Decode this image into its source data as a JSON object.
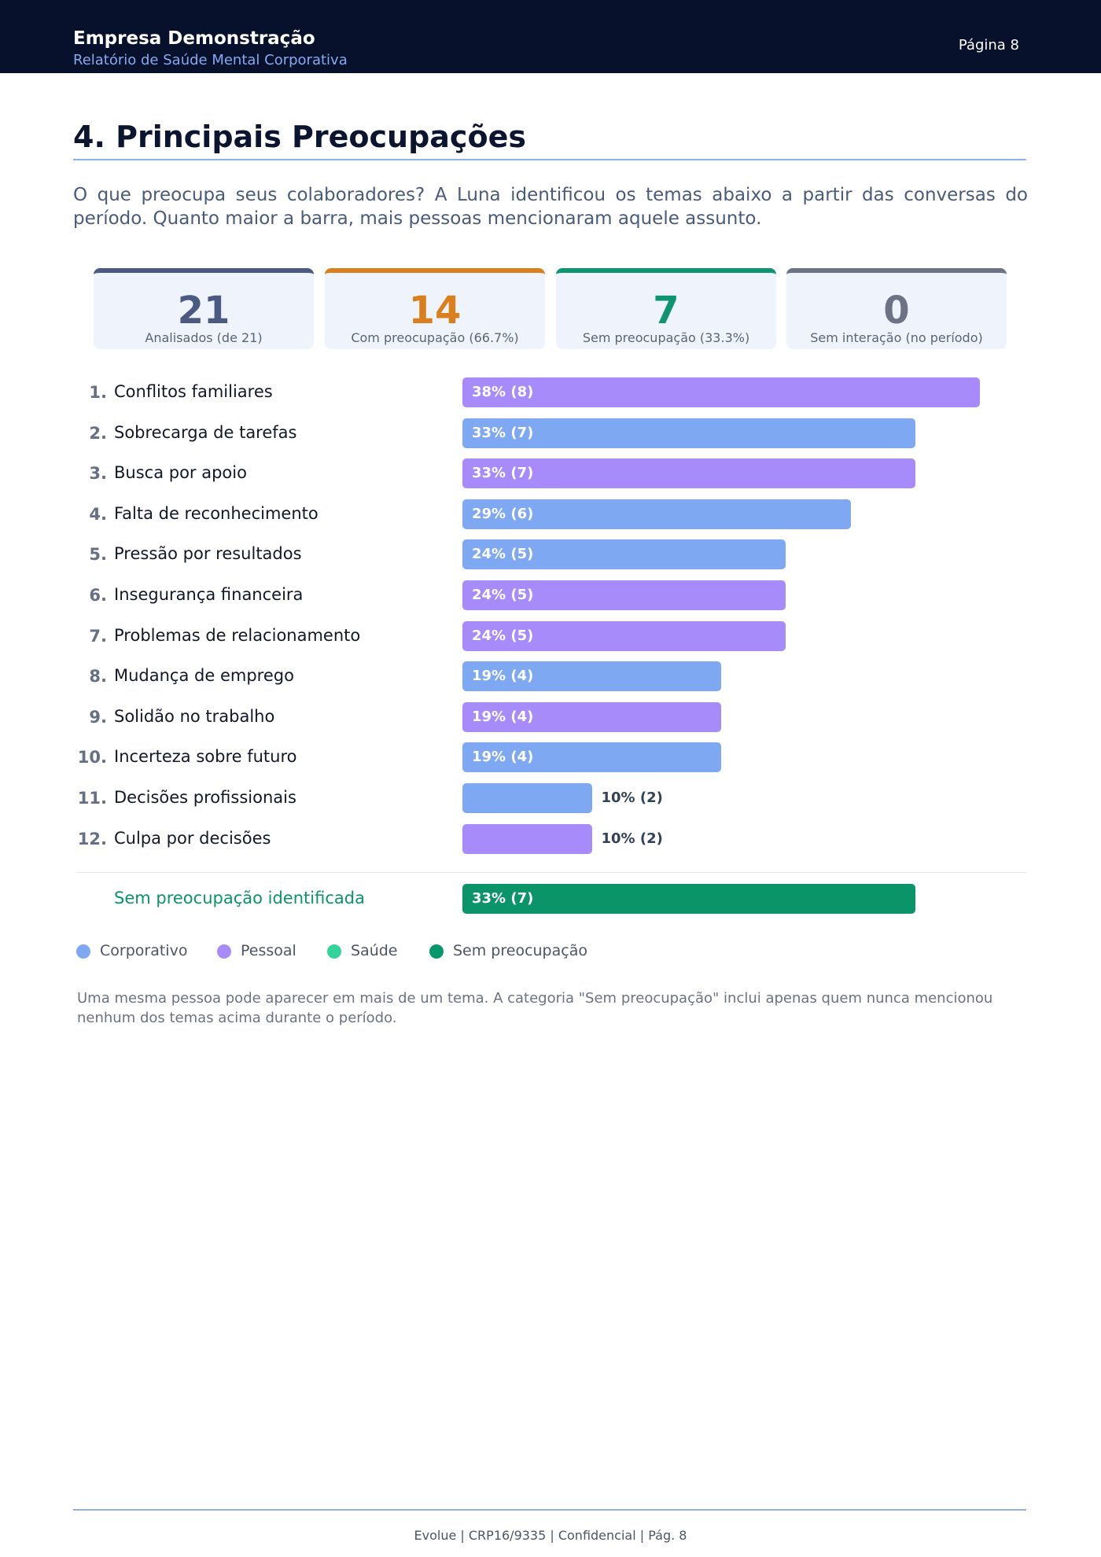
{
  "header": {
    "company": "Empresa Demonstração",
    "subtitle": "Relatório de Saúde Mental Corporativa",
    "page": "Página 8"
  },
  "section": {
    "title": "4. Principais Preocupações",
    "intro": "O que preocupa seus colaboradores? A Luna identificou os temas abaixo a partir das conversas do período. Quanto maior a barra, mais pessoas mencionaram aquele assunto."
  },
  "stats": [
    {
      "value": 21,
      "label": "Analisados (de 21)",
      "color": "#4a5a80"
    },
    {
      "value": 14,
      "label": "Com preocupação (66.7%)",
      "color": "#d97f1e"
    },
    {
      "value": 7,
      "label": "Sem preocupação (33.3%)",
      "color": "#0f9470"
    },
    {
      "value": 0,
      "label": "Sem interação (no período)",
      "color": "#6b7385"
    }
  ],
  "chart_data": {
    "type": "bar",
    "ranks": [
      "1.",
      "2.",
      "3.",
      "4.",
      "5.",
      "6.",
      "7.",
      "8.",
      "9.",
      "10.",
      "11.",
      "12."
    ],
    "categories": [
      "Conflitos familiares",
      "Sobrecarga de tarefas",
      "Busca por apoio",
      "Falta de reconhecimento",
      "Pressão por resultados",
      "Insegurança financeira",
      "Problemas de relacionamento",
      "Mudança de emprego",
      "Solidão no trabalho",
      "Incerteza sobre futuro",
      "Decisões profissionais",
      "Culpa por decisões"
    ],
    "values": [
      8,
      7,
      7,
      6,
      5,
      5,
      5,
      4,
      4,
      4,
      2,
      2
    ],
    "value_labels": [
      "38% (8)",
      "33% (7)",
      "33% (7)",
      "29% (6)",
      "24% (5)",
      "24% (5)",
      "24% (5)",
      "19% (4)",
      "19% (4)",
      "19% (4)",
      "10% (2)",
      "10% (2)"
    ],
    "colors": [
      "#a78bfa",
      "#7fa8f2",
      "#a78bfa",
      "#7fa8f2",
      "#7fa8f2",
      "#a78bfa",
      "#a78bfa",
      "#7fa8f2",
      "#a78bfa",
      "#7fa8f2",
      "#7fa8f2",
      "#a78bfa"
    ],
    "none_row": {
      "label": "Sem preocupação identificada",
      "value": 7,
      "value_label": "33% (7)",
      "color": "#0b9467"
    },
    "legend": [
      {
        "name": "Corporativo",
        "color": "#7fa8f2"
      },
      {
        "name": "Pessoal",
        "color": "#a78bfa"
      },
      {
        "name": "Saúde",
        "color": "#34d399"
      },
      {
        "name": "Sem preocupação",
        "color": "#059669"
      }
    ]
  },
  "note": "Uma mesma pessoa pode aparecer em mais de um tema. A categoria \"Sem preocupação\" inclui apenas quem nunca mencionou nenhum dos temas acima durante o período.",
  "footer": "Evolue | CRP16/9335 | Confidencial | Pág. 8"
}
